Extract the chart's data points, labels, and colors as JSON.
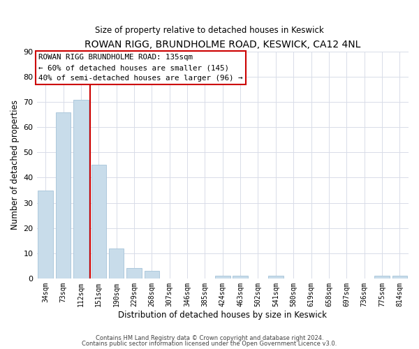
{
  "title": "ROWAN RIGG, BRUNDHOLME ROAD, KESWICK, CA12 4NL",
  "subtitle": "Size of property relative to detached houses in Keswick",
  "xlabel": "Distribution of detached houses by size in Keswick",
  "ylabel": "Number of detached properties",
  "bar_labels": [
    "34sqm",
    "73sqm",
    "112sqm",
    "151sqm",
    "190sqm",
    "229sqm",
    "268sqm",
    "307sqm",
    "346sqm",
    "385sqm",
    "424sqm",
    "463sqm",
    "502sqm",
    "541sqm",
    "580sqm",
    "619sqm",
    "658sqm",
    "697sqm",
    "736sqm",
    "775sqm",
    "814sqm"
  ],
  "bar_values": [
    35,
    66,
    71,
    45,
    12,
    4,
    3,
    0,
    0,
    0,
    1,
    1,
    0,
    1,
    0,
    0,
    0,
    0,
    0,
    1,
    1
  ],
  "bar_color": "#c8dcea",
  "bar_edge_color": "#adc8dc",
  "ylim": [
    0,
    90
  ],
  "yticks": [
    0,
    10,
    20,
    30,
    40,
    50,
    60,
    70,
    80,
    90
  ],
  "vline_x": 2.5,
  "vline_color": "#cc0000",
  "annotation_title": "ROWAN RIGG BRUNDHOLME ROAD: 135sqm",
  "annotation_line2": "← 60% of detached houses are smaller (145)",
  "annotation_line3": "40% of semi-detached houses are larger (96) →",
  "annotation_box_color": "#ffffff",
  "annotation_box_edge_color": "#cc0000",
  "footer1": "Contains HM Land Registry data © Crown copyright and database right 2024.",
  "footer2": "Contains public sector information licensed under the Open Government Licence v3.0.",
  "background_color": "#ffffff",
  "grid_color": "#d8dce8"
}
